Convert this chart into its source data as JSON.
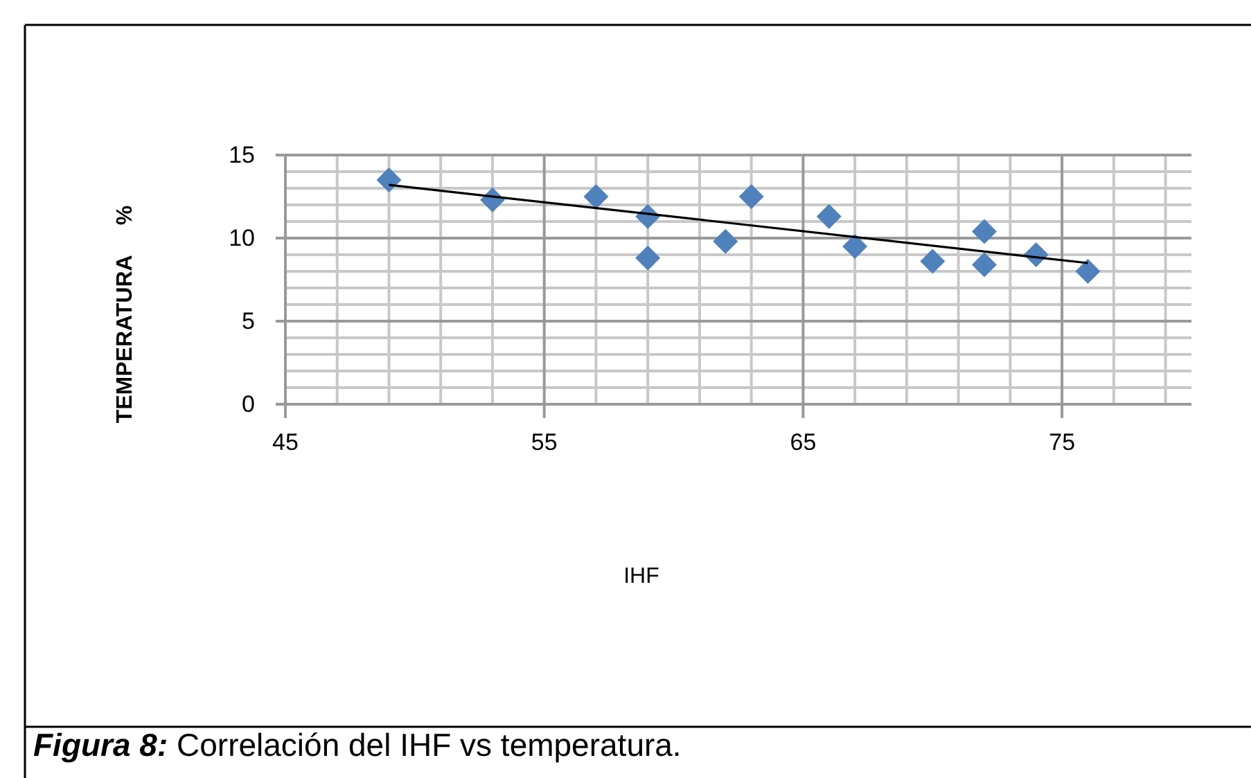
{
  "chart_data": {
    "type": "scatter",
    "xlabel": "IHF",
    "ylabel": "TEMPERATURA     %",
    "xlim": [
      45,
      80
    ],
    "ylim": [
      0,
      15
    ],
    "xticks": [
      45,
      55,
      65,
      75
    ],
    "yticks": [
      0,
      5,
      10,
      15
    ],
    "grid": true,
    "marker": "diamond",
    "annotations": [
      "Figura 8: Correlación del IHF vs temperatura."
    ],
    "series": [
      {
        "color": "#4f81bd",
        "x": [
          49,
          53,
          57,
          59,
          59,
          62,
          63,
          66,
          67,
          70,
          72,
          72,
          74,
          76
        ],
        "values": [
          13.5,
          12.3,
          12.5,
          11.3,
          8.8,
          9.8,
          12.5,
          11.3,
          9.5,
          8.6,
          10.4,
          8.4,
          9.0,
          8.0
        ]
      },
      {
        "type": "line",
        "color": "#000000",
        "marker": "none",
        "x": [
          49,
          76
        ],
        "values": [
          13.2,
          8.5
        ]
      }
    ]
  }
}
